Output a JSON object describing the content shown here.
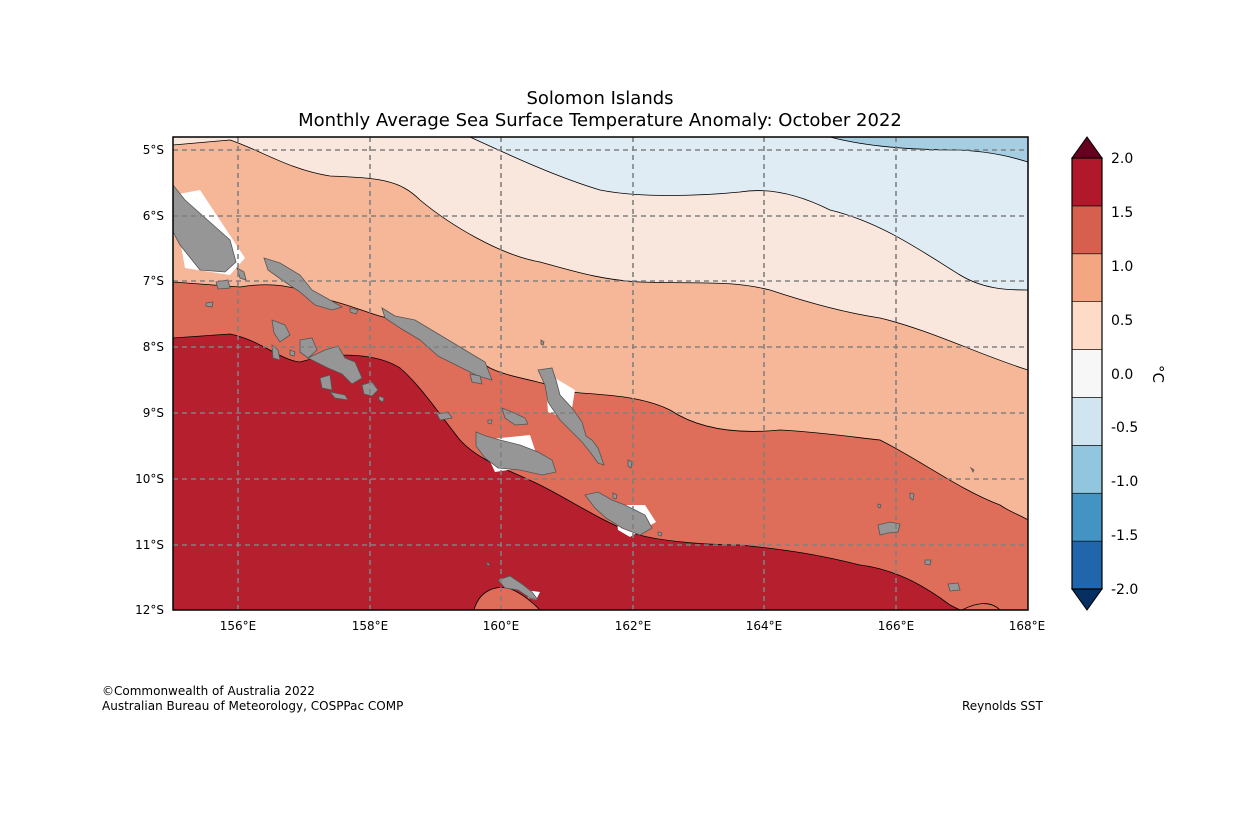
{
  "title": {
    "line1": "Solomon Islands",
    "line2": "Monthly Average Sea Surface Temperature Anomaly: October 2022"
  },
  "axes": {
    "lon_labels": [
      "156°E",
      "158°E",
      "160°E",
      "162°E",
      "164°E",
      "166°E",
      "168°E"
    ],
    "lat_labels": [
      "5°S",
      "6°S",
      "7°S",
      "8°S",
      "9°S",
      "10°S",
      "11°S",
      "12°S"
    ]
  },
  "colorbar": {
    "unit": "°C",
    "tick_labels": [
      "2.0",
      "1.5",
      "1.0",
      "0.5",
      "0.0",
      "-0.5",
      "-1.0",
      "-1.5",
      "-2.0"
    ],
    "colors": [
      "#2166ac",
      "#4393c3",
      "#92c5de",
      "#d1e5f0",
      "#f7f7f7",
      "#fddbc7",
      "#f4a582",
      "#d6604d",
      "#b2182b"
    ],
    "over_color": "#67001f",
    "under_color": "#053061"
  },
  "map_colors": {
    "band_2_0": "#b61f2e",
    "band_1_5": "#de6e59",
    "band_1_0": "#f6b698",
    "band_0_5": "#f9e6dc",
    "band_neg0_5": "#e0ecf4",
    "band_neg1_0": "#a6cee3",
    "land": "#969696"
  },
  "footer": {
    "copyright": "©Commonwealth of Australia 2022",
    "agency": "Australian Bureau of Meteorology, COSPPac COMP",
    "source": "Reynolds SST"
  }
}
